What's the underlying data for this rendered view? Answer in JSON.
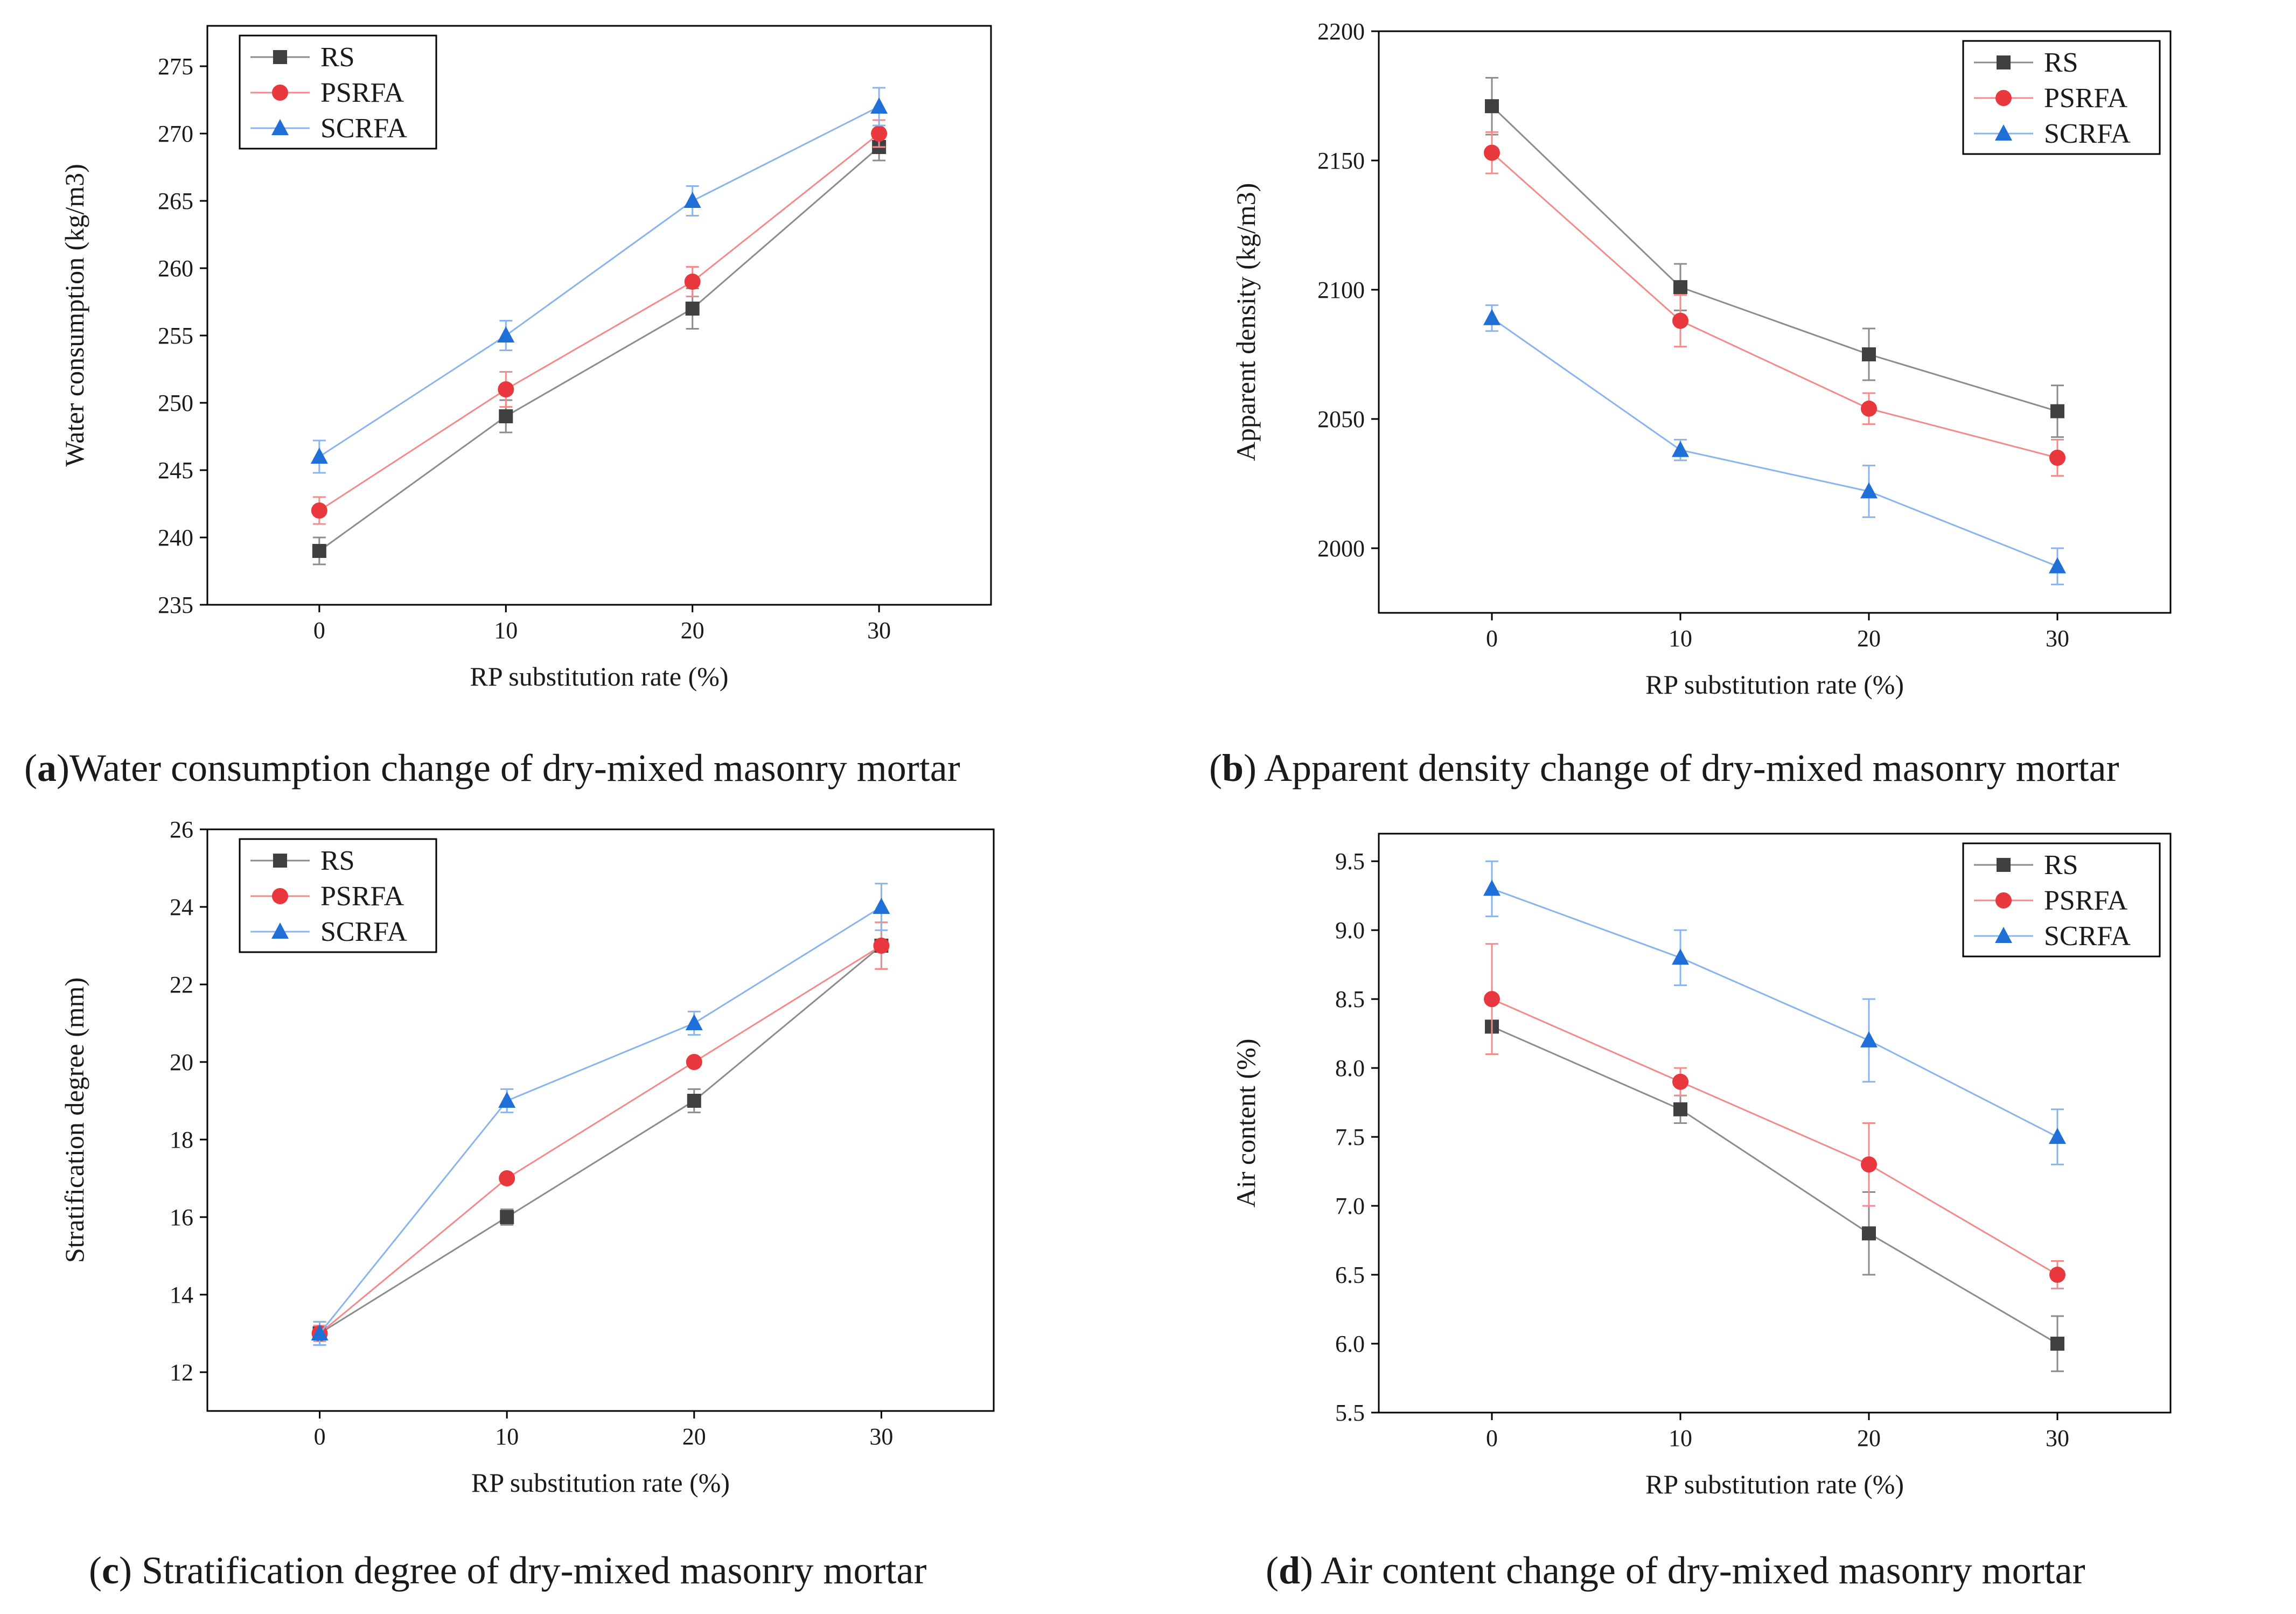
{
  "colors": {
    "RS": "#404040",
    "PSRFA": "#e8383d",
    "SCRFA": "#1f6fd6",
    "RS_line": "#8c8c8c",
    "PSRFA_line": "#f28b8b",
    "SCRFA_line": "#8ab4ee",
    "axis": "#000000"
  },
  "captions": [
    {
      "letter": "a",
      "open": "(",
      "close": ")",
      "text": "Water consumption change of dry-mixed masonry mortar"
    },
    {
      "letter": "b",
      "open": "(",
      "close": ")",
      "text": " Apparent density change of dry-mixed masonry mortar"
    },
    {
      "letter": "c",
      "open": "(",
      "close": ")",
      "text": " Stratification degree of dry-mixed masonry mortar"
    },
    {
      "letter": "d",
      "open": "(",
      "close": ")",
      "text": " Air content change of dry-mixed masonry mortar"
    }
  ],
  "chart_data": [
    {
      "id": "a",
      "type": "line",
      "x": [
        0,
        10,
        20,
        30
      ],
      "xticks": [
        "0",
        "10",
        "20",
        "30"
      ],
      "xlim": [
        -6,
        36
      ],
      "ylim": [
        235,
        278
      ],
      "yticks": [
        "235",
        "240",
        "245",
        "250",
        "255",
        "260",
        "265",
        "270",
        "275"
      ],
      "yticks_values": [
        235,
        240,
        245,
        250,
        255,
        260,
        265,
        270,
        275
      ],
      "xlabel": "RP substitution rate (%)",
      "ylabel": "Water consumption (kg/m3)",
      "legend": "top-left",
      "series": [
        {
          "name": "RS",
          "marker": "square",
          "values": [
            239,
            249,
            257,
            269
          ],
          "errors": [
            1.0,
            1.2,
            1.5,
            1.0
          ]
        },
        {
          "name": "PSRFA",
          "marker": "circle",
          "values": [
            242,
            251,
            259,
            270
          ],
          "errors": [
            1.0,
            1.3,
            1.1,
            1.0
          ]
        },
        {
          "name": "SCRFA",
          "marker": "triangle",
          "values": [
            246,
            255,
            265,
            272
          ],
          "errors": [
            1.2,
            1.1,
            1.1,
            1.4
          ]
        }
      ]
    },
    {
      "id": "b",
      "type": "line",
      "x": [
        0,
        10,
        20,
        30
      ],
      "xticks": [
        "0",
        "10",
        "20",
        "30"
      ],
      "xlim": [
        -6,
        36
      ],
      "ylim": [
        1975,
        2200
      ],
      "yticks": [
        "2000",
        "2050",
        "2100",
        "2150",
        "2200"
      ],
      "yticks_values": [
        2000,
        2050,
        2100,
        2150,
        2200
      ],
      "xlabel": "RP substitution rate (%)",
      "ylabel": "Apparent density (kg/m3)",
      "legend": "top-right",
      "series": [
        {
          "name": "RS",
          "marker": "square",
          "values": [
            2171,
            2101,
            2075,
            2053
          ],
          "errors": [
            11,
            9,
            10,
            10
          ]
        },
        {
          "name": "PSRFA",
          "marker": "circle",
          "values": [
            2153,
            2088,
            2054,
            2035
          ],
          "errors": [
            8,
            10,
            6,
            7
          ]
        },
        {
          "name": "SCRFA",
          "marker": "triangle",
          "values": [
            2089,
            2038,
            2022,
            1993
          ],
          "errors": [
            5,
            4,
            10,
            7
          ]
        }
      ]
    },
    {
      "id": "c",
      "type": "line",
      "x": [
        0,
        10,
        20,
        30
      ],
      "xticks": [
        "0",
        "10",
        "20",
        "30"
      ],
      "xlim": [
        -6,
        36
      ],
      "ylim": [
        11,
        26
      ],
      "yticks": [
        "12",
        "14",
        "16",
        "18",
        "20",
        "22",
        "24",
        "26"
      ],
      "yticks_values": [
        12,
        14,
        16,
        18,
        20,
        22,
        24,
        26
      ],
      "xlabel": "RP substitution rate (%)",
      "ylabel": "Stratification degree (mm)",
      "legend": "top-left",
      "series": [
        {
          "name": "RS",
          "marker": "square",
          "values": [
            13,
            16,
            19,
            23
          ],
          "errors": [
            0.3,
            0.2,
            0.3,
            0.6
          ]
        },
        {
          "name": "PSRFA",
          "marker": "circle",
          "values": [
            13,
            17,
            20,
            23
          ],
          "errors": [
            0.2,
            0.1,
            0.1,
            0.6
          ]
        },
        {
          "name": "SCRFA",
          "marker": "triangle",
          "values": [
            13,
            19,
            21,
            24
          ],
          "errors": [
            0.3,
            0.3,
            0.3,
            0.6
          ]
        }
      ]
    },
    {
      "id": "d",
      "type": "line",
      "x": [
        0,
        10,
        20,
        30
      ],
      "xticks": [
        "0",
        "10",
        "20",
        "30"
      ],
      "xlim": [
        -6,
        36
      ],
      "ylim": [
        5.5,
        9.7
      ],
      "yticks": [
        "5.5",
        "6.0",
        "6.5",
        "7.0",
        "7.5",
        "8.0",
        "8.5",
        "9.0",
        "9.5"
      ],
      "yticks_values": [
        5.5,
        6.0,
        6.5,
        7.0,
        7.5,
        8.0,
        8.5,
        9.0,
        9.5
      ],
      "xlabel": "RP substitution rate (%)",
      "ylabel": "Air content (%)",
      "legend": "top-right",
      "series": [
        {
          "name": "RS",
          "marker": "square",
          "values": [
            8.3,
            7.7,
            6.8,
            6.0
          ],
          "errors": [
            0.2,
            0.1,
            0.3,
            0.2
          ]
        },
        {
          "name": "PSRFA",
          "marker": "circle",
          "values": [
            8.5,
            7.9,
            7.3,
            6.5
          ],
          "errors": [
            0.4,
            0.1,
            0.3,
            0.1
          ]
        },
        {
          "name": "SCRFA",
          "marker": "triangle",
          "values": [
            9.3,
            8.8,
            8.2,
            7.5
          ],
          "errors": [
            0.2,
            0.2,
            0.3,
            0.2
          ]
        }
      ]
    }
  ]
}
